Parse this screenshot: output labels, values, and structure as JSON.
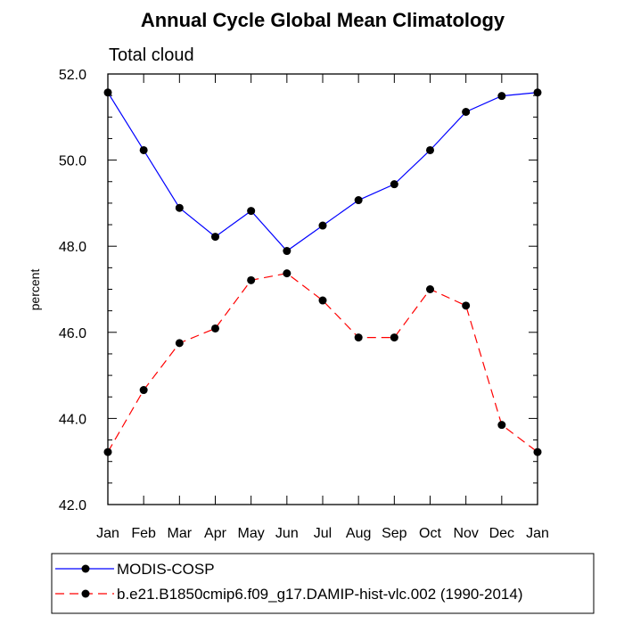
{
  "chart_data": {
    "type": "line",
    "title": "Annual Cycle Global Mean Climatology",
    "subtitle": "Total cloud",
    "xlabel": "",
    "ylabel": "percent",
    "categories": [
      "Jan",
      "Feb",
      "Mar",
      "Apr",
      "May",
      "Jun",
      "Jul",
      "Aug",
      "Sep",
      "Oct",
      "Nov",
      "Dec",
      "Jan"
    ],
    "ylim": [
      42.0,
      52.0
    ],
    "yticks": [
      "42.0",
      "44.0",
      "46.0",
      "48.0",
      "50.0",
      "52.0"
    ],
    "grid": false,
    "legend_position": "bottom",
    "series": [
      {
        "name": "MODIS-COSP",
        "color": "#0000ff",
        "dash": "solid",
        "values": [
          51.57,
          50.23,
          48.89,
          48.22,
          48.82,
          47.89,
          48.48,
          49.07,
          49.44,
          50.23,
          51.12,
          51.49,
          51.57
        ]
      },
      {
        "name": "b.e21.B1850cmip6.f09_g17.DAMIP-hist-vlc.002 (1990-2014)",
        "color": "#ff0000",
        "dash": "dashed",
        "values": [
          43.22,
          44.66,
          45.75,
          46.09,
          47.21,
          47.37,
          46.74,
          45.88,
          45.88,
          47.0,
          46.62,
          43.85,
          43.22
        ]
      }
    ]
  }
}
